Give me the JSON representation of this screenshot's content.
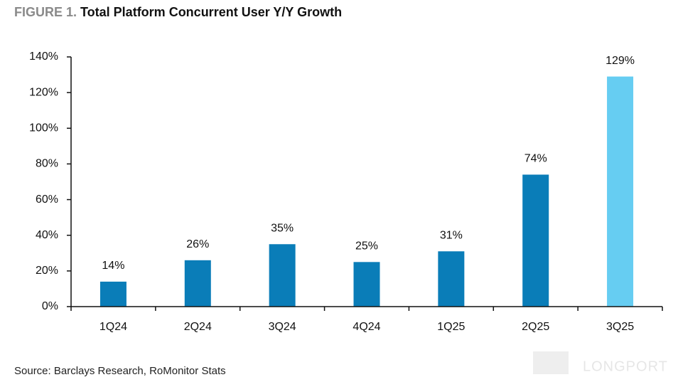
{
  "chart_data": {
    "type": "bar",
    "figure_label": "FIGURE 1.",
    "title": "Total Platform Concurrent User Y/Y Growth",
    "categories": [
      "1Q24",
      "2Q24",
      "3Q24",
      "4Q24",
      "1Q25",
      "2Q25",
      "3Q25"
    ],
    "values": [
      14,
      26,
      35,
      25,
      31,
      74,
      129
    ],
    "value_labels": [
      "14%",
      "26%",
      "35%",
      "25%",
      "31%",
      "74%",
      "129%"
    ],
    "colors": [
      "#0a7db8",
      "#0a7db8",
      "#0a7db8",
      "#0a7db8",
      "#0a7db8",
      "#0a7db8",
      "#66cdf2"
    ],
    "ylim": [
      0,
      140
    ],
    "yticks": [
      {
        "value": 0,
        "label": "0%"
      },
      {
        "value": 20,
        "label": "20%"
      },
      {
        "value": 40,
        "label": "40%"
      },
      {
        "value": 60,
        "label": "60%"
      },
      {
        "value": 80,
        "label": "80%"
      },
      {
        "value": 100,
        "label": "100%"
      },
      {
        "value": 120,
        "label": "120%"
      },
      {
        "value": 140,
        "label": "140%"
      }
    ],
    "grid": false,
    "source": "Source: Barclays Research, RoMonitor Stats",
    "watermark": "LONGPORT"
  }
}
